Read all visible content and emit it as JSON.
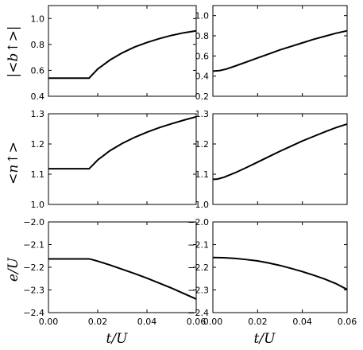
{
  "chart_data": [
    {
      "type": "line",
      "panel": "row1-left",
      "ylabel": "|<b↑>|",
      "xlim": [
        0.0,
        0.06
      ],
      "ylim": [
        0.4,
        1.1
      ],
      "yticks": [
        "0.4",
        "0.6",
        "0.8",
        "1.0"
      ],
      "yticks_values": [
        0.4,
        0.6,
        0.8,
        1.0
      ],
      "series": [
        {
          "x": [
            0.0,
            0.0165,
            0.018,
            0.02,
            0.025,
            0.03,
            0.035,
            0.04,
            0.045,
            0.05,
            0.055,
            0.06
          ],
          "y": [
            0.54,
            0.54,
            0.57,
            0.61,
            0.68,
            0.735,
            0.78,
            0.815,
            0.845,
            0.87,
            0.89,
            0.905
          ]
        }
      ]
    },
    {
      "type": "line",
      "panel": "row1-right",
      "xlim": [
        0.0,
        0.06
      ],
      "ylim": [
        0.2,
        1.1
      ],
      "yticks": [
        "0.2",
        "0.4",
        "0.6",
        "0.8",
        "1.0"
      ],
      "yticks_values": [
        0.2,
        0.4,
        0.6,
        0.8,
        1.0
      ],
      "series": [
        {
          "x": [
            0.0,
            0.003,
            0.006,
            0.01,
            0.015,
            0.02,
            0.025,
            0.03,
            0.035,
            0.04,
            0.045,
            0.05,
            0.055,
            0.06
          ],
          "y": [
            0.45,
            0.455,
            0.47,
            0.5,
            0.54,
            0.58,
            0.62,
            0.66,
            0.695,
            0.73,
            0.765,
            0.795,
            0.825,
            0.85
          ]
        }
      ]
    },
    {
      "type": "line",
      "panel": "row2-left",
      "ylabel": "<n↑>",
      "xlim": [
        0.0,
        0.06
      ],
      "ylim": [
        1.0,
        1.3
      ],
      "yticks": [
        "1.0",
        "1.1",
        "1.2",
        "1.3"
      ],
      "yticks_values": [
        1.0,
        1.1,
        1.2,
        1.3
      ],
      "series": [
        {
          "x": [
            0.0,
            0.0165,
            0.018,
            0.02,
            0.025,
            0.03,
            0.035,
            0.04,
            0.045,
            0.05,
            0.055,
            0.06
          ],
          "y": [
            1.118,
            1.118,
            1.13,
            1.147,
            1.178,
            1.202,
            1.222,
            1.239,
            1.254,
            1.267,
            1.279,
            1.29
          ]
        }
      ]
    },
    {
      "type": "line",
      "panel": "row2-right",
      "xlim": [
        0.0,
        0.06
      ],
      "ylim": [
        1.0,
        1.3
      ],
      "yticks": [
        "1.0",
        "1.1",
        "1.2",
        "1.3"
      ],
      "yticks_values": [
        1.0,
        1.1,
        1.2,
        1.3
      ],
      "series": [
        {
          "x": [
            0.0,
            0.002,
            0.005,
            0.01,
            0.015,
            0.02,
            0.025,
            0.03,
            0.035,
            0.04,
            0.045,
            0.05,
            0.055,
            0.06
          ],
          "y": [
            1.083,
            1.084,
            1.09,
            1.105,
            1.122,
            1.14,
            1.158,
            1.176,
            1.193,
            1.21,
            1.225,
            1.24,
            1.254,
            1.266
          ]
        }
      ]
    },
    {
      "type": "line",
      "panel": "row3-left",
      "ylabel": "e/U",
      "xlabel": "t/U",
      "xlim": [
        0.0,
        0.06
      ],
      "ylim": [
        -2.4,
        -2.0
      ],
      "xticks": [
        "0.00",
        "0.02",
        "0.04",
        "0.06"
      ],
      "xticks_values": [
        0.0,
        0.02,
        0.04,
        0.06
      ],
      "yticks": [
        "−2.4",
        "−2.3",
        "−2.2",
        "−2.1",
        "−2.0"
      ],
      "yticks_values": [
        -2.4,
        -2.3,
        -2.2,
        -2.1,
        -2.0
      ],
      "series": [
        {
          "x": [
            0.0,
            0.0165,
            0.018,
            0.02,
            0.025,
            0.03,
            0.035,
            0.04,
            0.045,
            0.05,
            0.055,
            0.06
          ],
          "y": [
            -2.163,
            -2.163,
            -2.167,
            -2.173,
            -2.19,
            -2.209,
            -2.228,
            -2.248,
            -2.27,
            -2.292,
            -2.316,
            -2.34
          ]
        }
      ]
    },
    {
      "type": "line",
      "panel": "row3-right",
      "xlabel": "t/U",
      "xlim": [
        0.0,
        0.06
      ],
      "ylim": [
        -2.4,
        -2.0
      ],
      "xticks": [
        "0.00",
        "0.02",
        "0.04",
        "0.06"
      ],
      "xticks_values": [
        0.0,
        0.02,
        0.04,
        0.06
      ],
      "yticks": [
        "−2.4",
        "−2.3",
        "−2.2",
        "−2.1",
        "−2.0"
      ],
      "yticks_values": [
        -2.4,
        -2.3,
        -2.2,
        -2.1,
        -2.0
      ],
      "series": [
        {
          "x": [
            0.0,
            0.005,
            0.01,
            0.015,
            0.02,
            0.025,
            0.03,
            0.035,
            0.04,
            0.045,
            0.05,
            0.055,
            0.06
          ],
          "y": [
            -2.157,
            -2.158,
            -2.161,
            -2.166,
            -2.172,
            -2.181,
            -2.192,
            -2.205,
            -2.219,
            -2.235,
            -2.252,
            -2.272,
            -2.298
          ]
        }
      ]
    }
  ]
}
